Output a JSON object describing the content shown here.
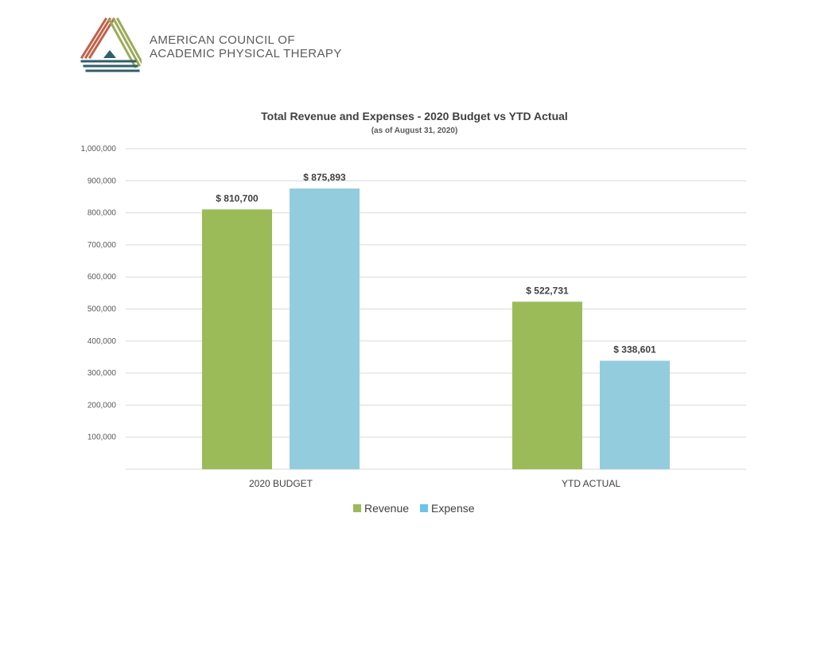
{
  "organization": {
    "name_line1": "AMERICAN COUNCIL OF",
    "name_line2": "ACADEMIC PHYSICAL THERAPY",
    "logo_colors": [
      "#c0634a",
      "#9bab58",
      "#2f5f6b"
    ]
  },
  "chart_data": {
    "type": "bar",
    "title": "Total Revenue and Expenses - 2020 Budget vs YTD Actual",
    "subtitle": "(as of August 31, 2020)",
    "categories": [
      "2020 BUDGET",
      "YTD ACTUAL"
    ],
    "series": [
      {
        "name": "Revenue",
        "color": "#9bbb59",
        "values": [
          810700,
          522731
        ],
        "labels": [
          "$ 810,700",
          "$ 522,731"
        ]
      },
      {
        "name": "Expense",
        "color": "#93cddd",
        "values": [
          875893,
          338601
        ],
        "labels": [
          "$ 875,893",
          "$ 338,601"
        ]
      }
    ],
    "legend_colors": [
      "#9bbb59",
      "#6cc4ee"
    ],
    "yticks": [
      100000,
      200000,
      300000,
      400000,
      500000,
      600000,
      700000,
      800000,
      900000,
      1000000
    ],
    "ytick_labels": [
      "100,000",
      "200,000",
      "300,000",
      "400,000",
      "500,000",
      "600,000",
      "700,000",
      "800,000",
      "900,000",
      "1,000,000"
    ],
    "ylim": [
      0,
      1000000
    ],
    "grid": true,
    "legend_position": "bottom",
    "xlabel": "",
    "ylabel": ""
  }
}
